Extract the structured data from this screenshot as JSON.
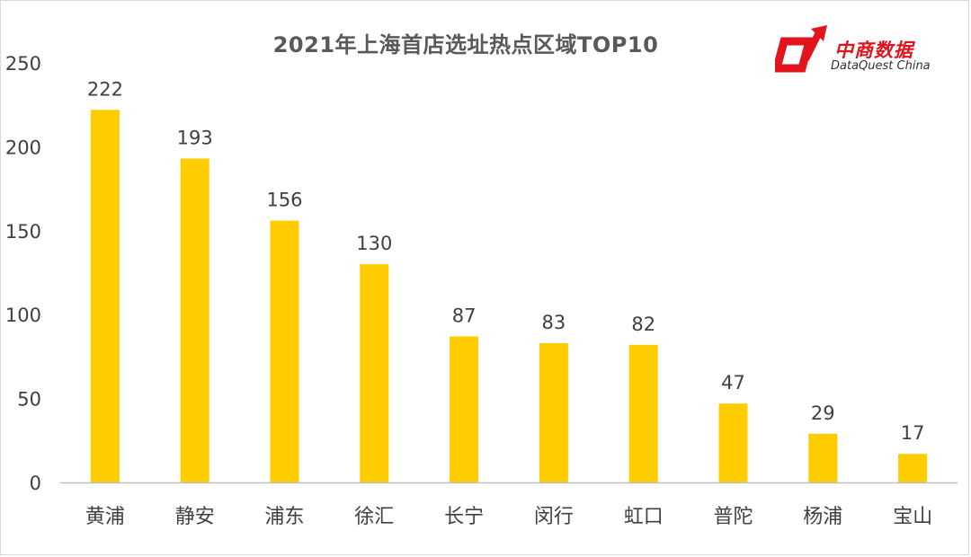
{
  "chart_data": {
    "type": "bar",
    "title": "2021年上海首店选址热点区域TOP10",
    "categories": [
      "黄浦",
      "静安",
      "浦东",
      "徐汇",
      "长宁",
      "闵行",
      "虹口",
      "普陀",
      "杨浦",
      "宝山"
    ],
    "values": [
      222,
      193,
      156,
      130,
      87,
      83,
      82,
      47,
      29,
      17
    ],
    "ylim": [
      0,
      250
    ],
    "yticks": [
      0,
      50,
      100,
      150,
      200,
      250
    ],
    "xlabel": "",
    "ylabel": "",
    "grid": false,
    "legend": "none",
    "bar_color": "#FFCC00",
    "axis_color": "#BFBFBF",
    "text_color": "#404040"
  },
  "logo": {
    "name_cn": "中商数据",
    "name_en": "DataQuest China",
    "color": "#E2141C"
  }
}
